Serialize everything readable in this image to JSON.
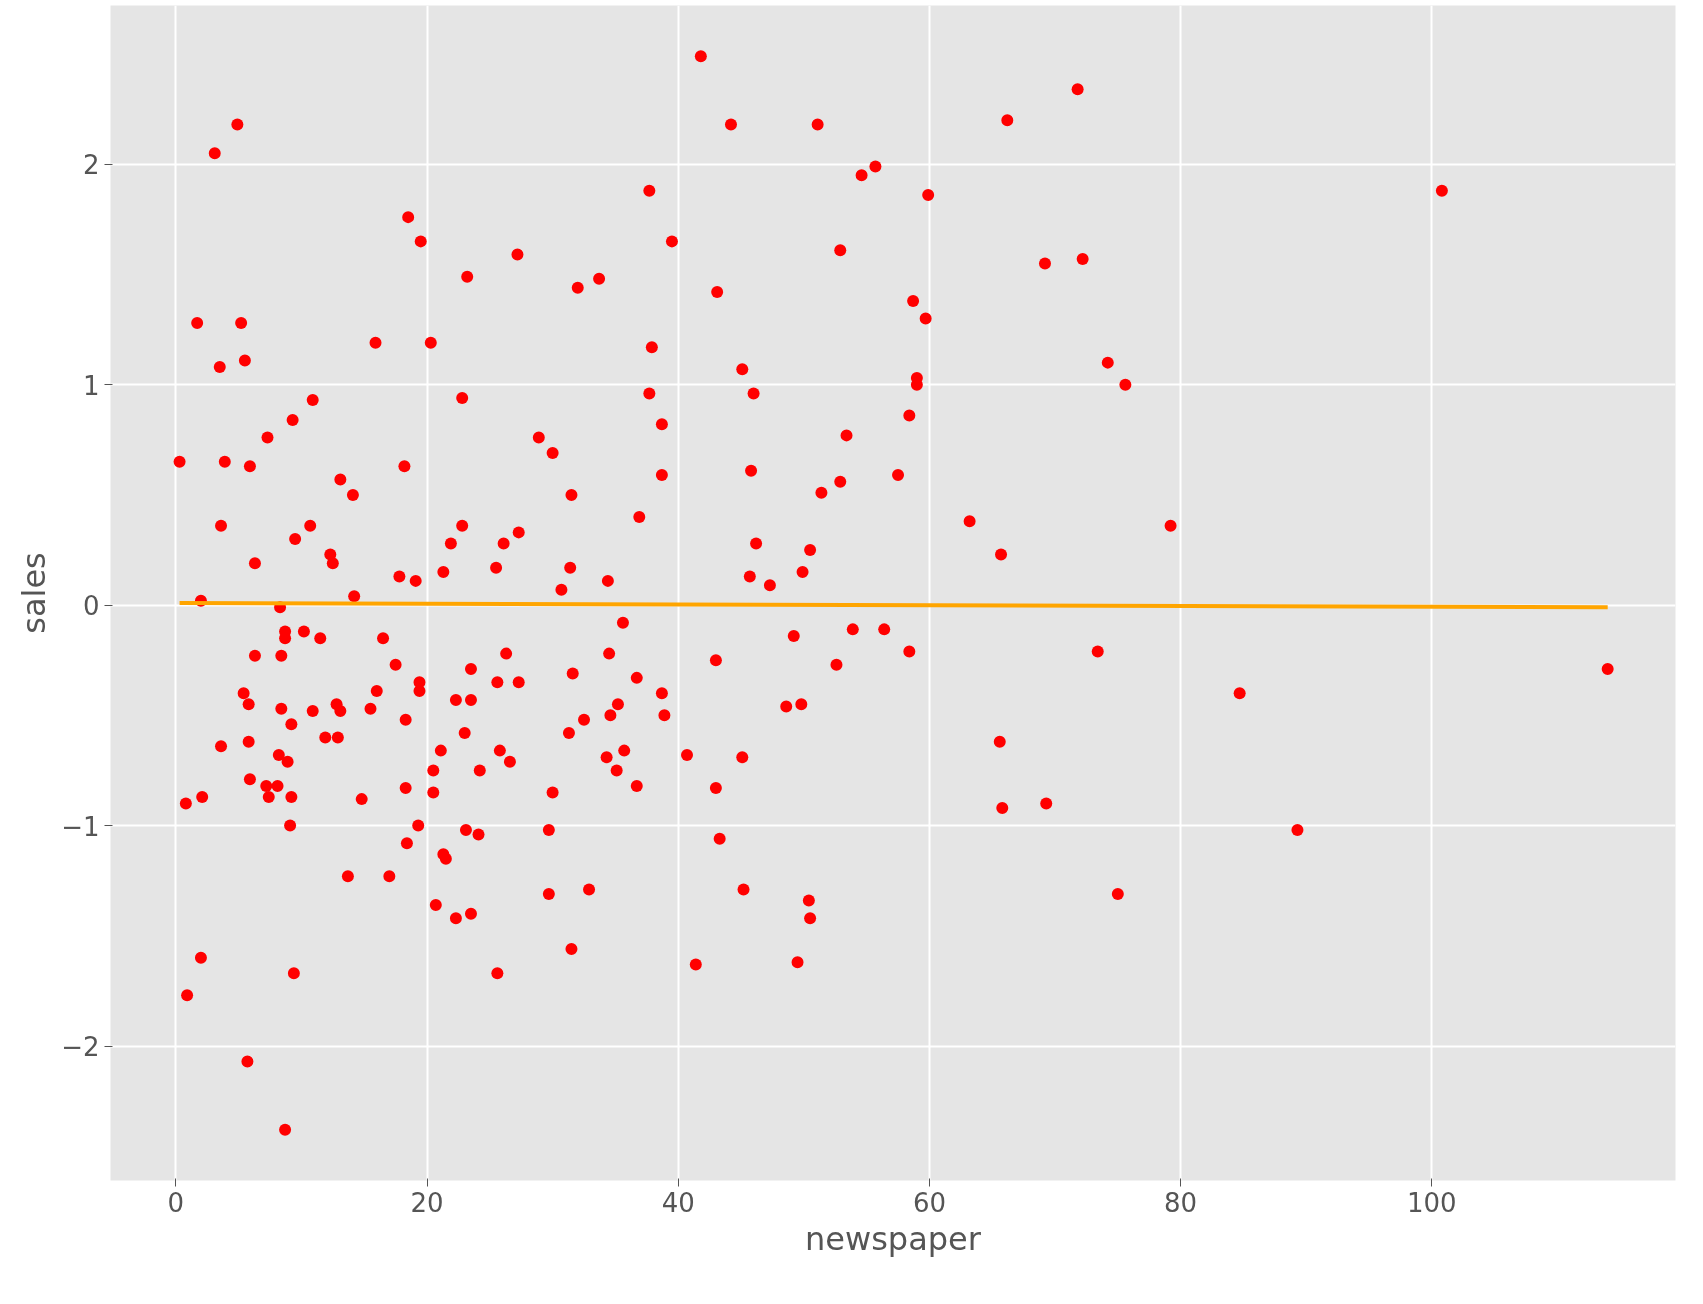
{
  "chart_data": {
    "type": "scatter",
    "xlabel": "newspaper",
    "ylabel": "sales",
    "xlim": [
      -5.2,
      119.4
    ],
    "ylim": [
      -2.61,
      2.72
    ],
    "xticks": [
      0,
      20,
      40,
      60,
      80,
      100
    ],
    "yticks": [
      {
        "value": -2,
        "label": "−2"
      },
      {
        "value": -1,
        "label": "−1"
      },
      0,
      1,
      2
    ],
    "grid": true,
    "series": [
      {
        "marker": "circle",
        "color": "#ff0000",
        "x": [
          0.3,
          0.8,
          0.9,
          1.7,
          2.0,
          2.1,
          2.0,
          3.1,
          3.5,
          3.6,
          3.6,
          3.9,
          4.9,
          5.2,
          5.5,
          5.4,
          5.8,
          5.8,
          5.7,
          5.9,
          5.9,
          6.3,
          6.3,
          7.3,
          7.2,
          7.4,
          8.1,
          8.2,
          8.3,
          8.4,
          8.4,
          8.7,
          8.7,
          8.7,
          8.9,
          9.1,
          9.3,
          9.2,
          9.2,
          9.4,
          9.5,
          10.2,
          10.7,
          10.9,
          10.9,
          11.5,
          11.9,
          12.3,
          12.5,
          12.8,
          12.9,
          13.1,
          13.1,
          13.7,
          14.1,
          14.2,
          14.8,
          15.5,
          15.9,
          16.0,
          16.5,
          17.0,
          17.5,
          17.8,
          18.2,
          18.3,
          18.3,
          18.4,
          18.5,
          19.1,
          19.3,
          19.4,
          19.4,
          19.5,
          20.3,
          20.5,
          20.5,
          20.7,
          21.1,
          21.3,
          21.3,
          21.5,
          21.9,
          22.3,
          22.3,
          22.8,
          22.8,
          23.0,
          23.1,
          23.2,
          23.5,
          23.5,
          23.5,
          24.1,
          24.2,
          25.5,
          25.6,
          25.6,
          25.8,
          26.1,
          26.3,
          26.6,
          27.2,
          27.3,
          27.3,
          28.9,
          29.7,
          29.7,
          30.0,
          30.0,
          30.7,
          31.3,
          31.4,
          31.5,
          31.5,
          31.6,
          32.0,
          32.5,
          32.9,
          33.7,
          34.4,
          34.3,
          34.5,
          34.6,
          35.1,
          35.2,
          35.6,
          35.7,
          36.7,
          36.7,
          36.9,
          37.7,
          37.7,
          37.9,
          38.7,
          38.7,
          38.7,
          38.9,
          39.5,
          40.7,
          41.4,
          41.8,
          43.0,
          43.1,
          43.0,
          43.3,
          44.2,
          45.1,
          45.1,
          45.2,
          45.7,
          45.8,
          46.0,
          46.2,
          47.3,
          48.6,
          49.2,
          49.5,
          49.8,
          49.9,
          50.4,
          50.5,
          50.5,
          51.1,
          51.4,
          52.6,
          52.9,
          52.9,
          53.4,
          53.9,
          54.6,
          55.7,
          56.4,
          57.5,
          58.4,
          58.4,
          58.7,
          59.0,
          59.0,
          59.7,
          59.9,
          63.2,
          65.7,
          65.6,
          65.8,
          66.2,
          69.2,
          69.3,
          71.8,
          72.2,
          73.4,
          74.2,
          75.0,
          75.6,
          79.2,
          84.7,
          89.3,
          100.8,
          114.0
        ],
        "values": [
          0.65,
          -0.9,
          -1.77,
          1.28,
          0.02,
          -0.87,
          -1.6,
          2.05,
          1.08,
          0.36,
          -0.64,
          0.65,
          2.18,
          1.28,
          1.11,
          -0.4,
          -0.45,
          -0.62,
          -2.07,
          0.63,
          -0.79,
          0.19,
          -0.23,
          0.76,
          -0.82,
          -0.87,
          -0.82,
          -0.68,
          -0.01,
          -0.23,
          -0.47,
          -0.12,
          -0.15,
          -2.38,
          -0.71,
          -1.0,
          0.84,
          -0.54,
          -0.87,
          -1.67,
          0.3,
          -0.12,
          0.36,
          -0.48,
          0.93,
          -0.15,
          -0.6,
          0.23,
          0.19,
          -0.45,
          -0.6,
          0.57,
          -0.48,
          -1.23,
          0.5,
          0.04,
          -0.88,
          -0.47,
          1.19,
          -0.39,
          -0.15,
          -1.23,
          -0.27,
          0.13,
          0.63,
          -0.52,
          -0.83,
          -1.08,
          1.76,
          0.11,
          -1.0,
          -0.35,
          -0.39,
          1.65,
          1.19,
          -0.85,
          -0.75,
          -1.36,
          -0.66,
          0.15,
          -1.13,
          -1.15,
          0.28,
          -0.43,
          -1.42,
          0.94,
          0.36,
          -0.58,
          -1.02,
          1.49,
          -0.29,
          -0.43,
          -1.4,
          -1.04,
          -0.75,
          0.17,
          -0.35,
          -1.67,
          -0.66,
          0.28,
          -0.22,
          -0.71,
          1.59,
          0.33,
          -0.35,
          0.76,
          -1.02,
          -1.31,
          0.69,
          -0.85,
          0.07,
          -0.58,
          0.17,
          0.5,
          -1.56,
          -0.31,
          1.44,
          -0.52,
          -1.29,
          1.48,
          0.11,
          -0.69,
          -0.22,
          -0.5,
          -0.75,
          -0.45,
          -0.08,
          -0.66,
          -0.33,
          -0.82,
          0.4,
          1.88,
          0.96,
          1.17,
          -0.4,
          0.59,
          0.82,
          -0.5,
          1.65,
          -0.68,
          -1.63,
          2.49,
          -0.25,
          1.42,
          -0.83,
          -1.06,
          2.18,
          1.07,
          -0.69,
          -1.29,
          0.13,
          0.61,
          0.96,
          0.28,
          0.09,
          -0.46,
          -0.14,
          -1.62,
          -0.45,
          0.15,
          -1.34,
          0.25,
          -1.42,
          2.18,
          0.51,
          -0.27,
          0.56,
          1.61,
          0.77,
          -0.11,
          1.95,
          1.99,
          -0.11,
          0.59,
          -0.21,
          0.86,
          1.38,
          1.03,
          1.0,
          1.3,
          1.86,
          0.38,
          0.23,
          -0.62,
          -0.92,
          2.2,
          1.55,
          -0.9,
          2.34,
          1.57,
          -0.21,
          1.1,
          -1.31,
          1.0,
          0.36,
          -0.4,
          -1.02,
          1.88,
          -0.29
        ]
      },
      {
        "type": "line",
        "color": "#ffa500",
        "x": [
          0.3,
          114.0
        ],
        "values": [
          0.01,
          -0.01
        ]
      }
    ]
  }
}
